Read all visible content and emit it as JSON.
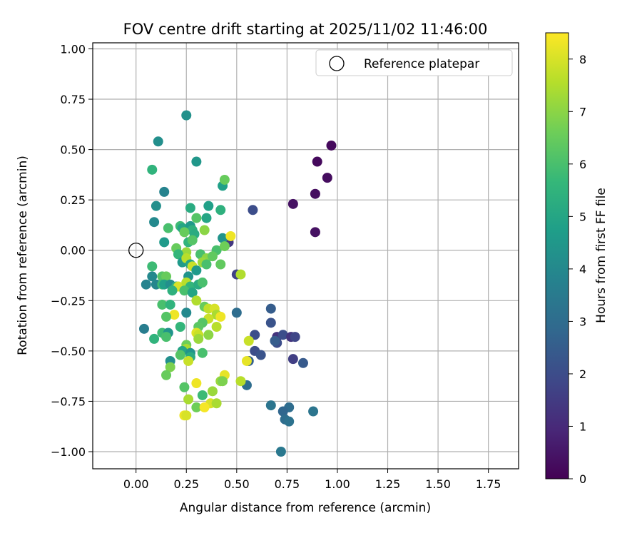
{
  "chart_data": {
    "type": "scatter",
    "title": "FOV centre drift starting at 2025/11/02 11:46:00",
    "xlabel": "Angular distance from reference (arcmin)",
    "ylabel": "Rotation from reference (arcmin)",
    "xlim": [
      -0.215,
      1.9
    ],
    "ylim": [
      -1.085,
      1.03
    ],
    "xticks": [
      0.0,
      0.25,
      0.5,
      0.75,
      1.0,
      1.25,
      1.5,
      1.75
    ],
    "xtick_labels": [
      "0.00",
      "0.25",
      "0.50",
      "0.75",
      "1.00",
      "1.25",
      "1.50",
      "1.75"
    ],
    "yticks": [
      1.0,
      0.75,
      0.5,
      0.25,
      0.0,
      -0.25,
      -0.5,
      -0.75,
      -1.0
    ],
    "ytick_labels": [
      "1.00",
      "0.75",
      "0.50",
      "0.25",
      "0.00",
      "−0.25",
      "−0.50",
      "−0.75",
      "−1.00"
    ],
    "grid": true,
    "colormap": "viridis",
    "colorbar": {
      "label": "Hours from first FF file",
      "range": [
        0,
        8.5
      ],
      "ticks": [
        0,
        1,
        2,
        3,
        4,
        5,
        6,
        7,
        8
      ],
      "tick_labels": [
        "0",
        "1",
        "2",
        "3",
        "4",
        "5",
        "6",
        "7",
        "8"
      ]
    },
    "legend": {
      "position": "top-right",
      "entries": [
        {
          "label": "Reference platepar",
          "marker": "open-circle"
        }
      ]
    },
    "reference_point": {
      "x": 0.0,
      "y": 0.0
    },
    "points": [
      {
        "x": 0.97,
        "y": 0.52,
        "c": 0.2
      },
      {
        "x": 0.9,
        "y": 0.44,
        "c": 0.2
      },
      {
        "x": 0.95,
        "y": 0.36,
        "c": 0.3
      },
      {
        "x": 0.89,
        "y": 0.28,
        "c": 0.3
      },
      {
        "x": 0.78,
        "y": 0.23,
        "c": 0.4
      },
      {
        "x": 0.89,
        "y": 0.09,
        "c": 0.4
      },
      {
        "x": 0.58,
        "y": 0.2,
        "c": 2.0
      },
      {
        "x": 0.46,
        "y": 0.04,
        "c": 1.4
      },
      {
        "x": 0.5,
        "y": -0.12,
        "c": 1.7
      },
      {
        "x": 0.5,
        "y": -0.31,
        "c": 3.0
      },
      {
        "x": 0.67,
        "y": -0.29,
        "c": 2.5
      },
      {
        "x": 0.67,
        "y": -0.36,
        "c": 2.2
      },
      {
        "x": 0.59,
        "y": -0.42,
        "c": 2.0
      },
      {
        "x": 0.7,
        "y": -0.43,
        "c": 1.3
      },
      {
        "x": 0.73,
        "y": -0.42,
        "c": 2.0
      },
      {
        "x": 0.77,
        "y": -0.43,
        "c": 1.3
      },
      {
        "x": 0.79,
        "y": -0.43,
        "c": 1.8
      },
      {
        "x": 0.7,
        "y": -0.46,
        "c": 2.0
      },
      {
        "x": 0.69,
        "y": -0.45,
        "c": 2.5
      },
      {
        "x": 0.59,
        "y": -0.5,
        "c": 2.0
      },
      {
        "x": 0.62,
        "y": -0.52,
        "c": 2.2
      },
      {
        "x": 0.78,
        "y": -0.54,
        "c": 1.6
      },
      {
        "x": 0.83,
        "y": -0.56,
        "c": 2.4
      },
      {
        "x": 0.56,
        "y": -0.55,
        "c": 2.6
      },
      {
        "x": 0.55,
        "y": -0.67,
        "c": 3.0
      },
      {
        "x": 0.67,
        "y": -0.77,
        "c": 3.3
      },
      {
        "x": 0.76,
        "y": -0.78,
        "c": 3.0
      },
      {
        "x": 0.73,
        "y": -0.8,
        "c": 2.8
      },
      {
        "x": 0.88,
        "y": -0.8,
        "c": 3.3
      },
      {
        "x": 0.74,
        "y": -0.84,
        "c": 3.0
      },
      {
        "x": 0.76,
        "y": -0.85,
        "c": 3.2
      },
      {
        "x": 0.72,
        "y": -1.0,
        "c": 3.4
      },
      {
        "x": 0.25,
        "y": 0.67,
        "c": 4.3
      },
      {
        "x": 0.11,
        "y": 0.54,
        "c": 4.2
      },
      {
        "x": 0.3,
        "y": 0.44,
        "c": 4.5
      },
      {
        "x": 0.08,
        "y": 0.4,
        "c": 5.5
      },
      {
        "x": 0.14,
        "y": 0.29,
        "c": 3.8
      },
      {
        "x": 0.43,
        "y": 0.32,
        "c": 4.8
      },
      {
        "x": 0.44,
        "y": 0.35,
        "c": 6.5
      },
      {
        "x": 0.1,
        "y": 0.22,
        "c": 4.2
      },
      {
        "x": 0.27,
        "y": 0.21,
        "c": 5.2
      },
      {
        "x": 0.36,
        "y": 0.22,
        "c": 4.8
      },
      {
        "x": 0.42,
        "y": 0.2,
        "c": 5.4
      },
      {
        "x": 0.3,
        "y": 0.16,
        "c": 6.2
      },
      {
        "x": 0.35,
        "y": 0.16,
        "c": 5.0
      },
      {
        "x": 0.09,
        "y": 0.14,
        "c": 4.0
      },
      {
        "x": 0.16,
        "y": 0.11,
        "c": 6.0
      },
      {
        "x": 0.22,
        "y": 0.12,
        "c": 5.8
      },
      {
        "x": 0.23,
        "y": 0.11,
        "c": 5.0
      },
      {
        "x": 0.27,
        "y": 0.12,
        "c": 4.6
      },
      {
        "x": 0.28,
        "y": 0.1,
        "c": 5.4
      },
      {
        "x": 0.24,
        "y": 0.09,
        "c": 6.5
      },
      {
        "x": 0.34,
        "y": 0.1,
        "c": 7.0
      },
      {
        "x": 0.29,
        "y": 0.08,
        "c": 5.2
      },
      {
        "x": 0.43,
        "y": 0.06,
        "c": 4.4
      },
      {
        "x": 0.47,
        "y": 0.07,
        "c": 8.3
      },
      {
        "x": 0.14,
        "y": 0.04,
        "c": 4.6
      },
      {
        "x": 0.26,
        "y": 0.04,
        "c": 5.5
      },
      {
        "x": 0.28,
        "y": 0.05,
        "c": 6.2
      },
      {
        "x": 0.2,
        "y": 0.01,
        "c": 6.5
      },
      {
        "x": 0.25,
        "y": -0.01,
        "c": 7.2
      },
      {
        "x": 0.4,
        "y": 0.0,
        "c": 6.0
      },
      {
        "x": 0.44,
        "y": 0.02,
        "c": 6.6
      },
      {
        "x": 0.21,
        "y": -0.02,
        "c": 5.6
      },
      {
        "x": 0.32,
        "y": -0.02,
        "c": 6.0
      },
      {
        "x": 0.35,
        "y": -0.04,
        "c": 7.0
      },
      {
        "x": 0.38,
        "y": -0.03,
        "c": 6.4
      },
      {
        "x": 0.23,
        "y": -0.06,
        "c": 4.6
      },
      {
        "x": 0.25,
        "y": -0.04,
        "c": 7.6
      },
      {
        "x": 0.27,
        "y": -0.07,
        "c": 5.0
      },
      {
        "x": 0.33,
        "y": -0.06,
        "c": 7.2
      },
      {
        "x": 0.35,
        "y": -0.07,
        "c": 6.0
      },
      {
        "x": 0.42,
        "y": -0.07,
        "c": 6.4
      },
      {
        "x": 0.28,
        "y": -0.08,
        "c": 7.8
      },
      {
        "x": 0.08,
        "y": -0.08,
        "c": 5.8
      },
      {
        "x": 0.3,
        "y": -0.1,
        "c": 4.6
      },
      {
        "x": 0.52,
        "y": -0.12,
        "c": 7.5
      },
      {
        "x": 0.08,
        "y": -0.13,
        "c": 4.0
      },
      {
        "x": 0.13,
        "y": -0.13,
        "c": 6.2
      },
      {
        "x": 0.15,
        "y": -0.13,
        "c": 6.5
      },
      {
        "x": 0.26,
        "y": -0.13,
        "c": 4.4
      },
      {
        "x": 0.05,
        "y": -0.17,
        "c": 3.8
      },
      {
        "x": 0.1,
        "y": -0.17,
        "c": 3.9
      },
      {
        "x": 0.13,
        "y": -0.17,
        "c": 5.8
      },
      {
        "x": 0.14,
        "y": -0.17,
        "c": 4.8
      },
      {
        "x": 0.17,
        "y": -0.17,
        "c": 4.2
      },
      {
        "x": 0.2,
        "y": -0.18,
        "c": 5.5
      },
      {
        "x": 0.21,
        "y": -0.18,
        "c": 8.0
      },
      {
        "x": 0.25,
        "y": -0.16,
        "c": 7.6
      },
      {
        "x": 0.27,
        "y": -0.18,
        "c": 5.6
      },
      {
        "x": 0.31,
        "y": -0.17,
        "c": 5.2
      },
      {
        "x": 0.33,
        "y": -0.16,
        "c": 6.0
      },
      {
        "x": 0.18,
        "y": -0.2,
        "c": 5.4
      },
      {
        "x": 0.24,
        "y": -0.2,
        "c": 6.0
      },
      {
        "x": 0.28,
        "y": -0.21,
        "c": 5.0
      },
      {
        "x": 0.3,
        "y": -0.25,
        "c": 7.5
      },
      {
        "x": 0.13,
        "y": -0.27,
        "c": 6.0
      },
      {
        "x": 0.17,
        "y": -0.27,
        "c": 5.5
      },
      {
        "x": 0.34,
        "y": -0.28,
        "c": 6.5
      },
      {
        "x": 0.36,
        "y": -0.29,
        "c": 7.7
      },
      {
        "x": 0.39,
        "y": -0.29,
        "c": 8.0
      },
      {
        "x": 0.19,
        "y": -0.32,
        "c": 8.3
      },
      {
        "x": 0.15,
        "y": -0.33,
        "c": 6.2
      },
      {
        "x": 0.25,
        "y": -0.31,
        "c": 4.0
      },
      {
        "x": 0.4,
        "y": -0.32,
        "c": 7.4
      },
      {
        "x": 0.42,
        "y": -0.33,
        "c": 8.3
      },
      {
        "x": 0.36,
        "y": -0.34,
        "c": 7.8
      },
      {
        "x": 0.33,
        "y": -0.36,
        "c": 6.2
      },
      {
        "x": 0.31,
        "y": -0.38,
        "c": 6.3
      },
      {
        "x": 0.22,
        "y": -0.38,
        "c": 5.6
      },
      {
        "x": 0.4,
        "y": -0.38,
        "c": 7.6
      },
      {
        "x": 0.04,
        "y": -0.39,
        "c": 3.6
      },
      {
        "x": 0.13,
        "y": -0.41,
        "c": 5.8
      },
      {
        "x": 0.16,
        "y": -0.41,
        "c": 4.4
      },
      {
        "x": 0.3,
        "y": -0.41,
        "c": 8.1
      },
      {
        "x": 0.31,
        "y": -0.42,
        "c": 7.8
      },
      {
        "x": 0.36,
        "y": -0.42,
        "c": 7.0
      },
      {
        "x": 0.15,
        "y": -0.43,
        "c": 6.0
      },
      {
        "x": 0.09,
        "y": -0.44,
        "c": 5.5
      },
      {
        "x": 0.31,
        "y": -0.44,
        "c": 7.2
      },
      {
        "x": 0.25,
        "y": -0.47,
        "c": 6.6
      },
      {
        "x": 0.25,
        "y": -0.49,
        "c": 7.4
      },
      {
        "x": 0.23,
        "y": -0.5,
        "c": 5.0
      },
      {
        "x": 0.22,
        "y": -0.52,
        "c": 6.2
      },
      {
        "x": 0.27,
        "y": -0.51,
        "c": 4.4
      },
      {
        "x": 0.27,
        "y": -0.53,
        "c": 5.2
      },
      {
        "x": 0.33,
        "y": -0.51,
        "c": 6.0
      },
      {
        "x": 0.26,
        "y": -0.55,
        "c": 7.8
      },
      {
        "x": 0.17,
        "y": -0.55,
        "c": 4.2
      },
      {
        "x": 0.17,
        "y": -0.58,
        "c": 6.8
      },
      {
        "x": 0.15,
        "y": -0.62,
        "c": 6.5
      },
      {
        "x": 0.44,
        "y": -0.62,
        "c": 8.2
      },
      {
        "x": 0.42,
        "y": -0.65,
        "c": 7.2
      },
      {
        "x": 0.43,
        "y": -0.65,
        "c": 6.8
      },
      {
        "x": 0.52,
        "y": -0.65,
        "c": 7.6
      },
      {
        "x": 0.55,
        "y": -0.55,
        "c": 8.2
      },
      {
        "x": 0.56,
        "y": -0.45,
        "c": 7.8
      },
      {
        "x": 0.3,
        "y": -0.66,
        "c": 8.3
      },
      {
        "x": 0.24,
        "y": -0.68,
        "c": 6.2
      },
      {
        "x": 0.38,
        "y": -0.7,
        "c": 7.2
      },
      {
        "x": 0.33,
        "y": -0.72,
        "c": 5.8
      },
      {
        "x": 0.26,
        "y": -0.74,
        "c": 7.4
      },
      {
        "x": 0.37,
        "y": -0.76,
        "c": 8.0
      },
      {
        "x": 0.4,
        "y": -0.76,
        "c": 7.4
      },
      {
        "x": 0.3,
        "y": -0.78,
        "c": 6.6
      },
      {
        "x": 0.34,
        "y": -0.78,
        "c": 8.4
      },
      {
        "x": 0.24,
        "y": -0.82,
        "c": 8.3
      },
      {
        "x": 0.25,
        "y": -0.82,
        "c": 8.0
      }
    ]
  }
}
